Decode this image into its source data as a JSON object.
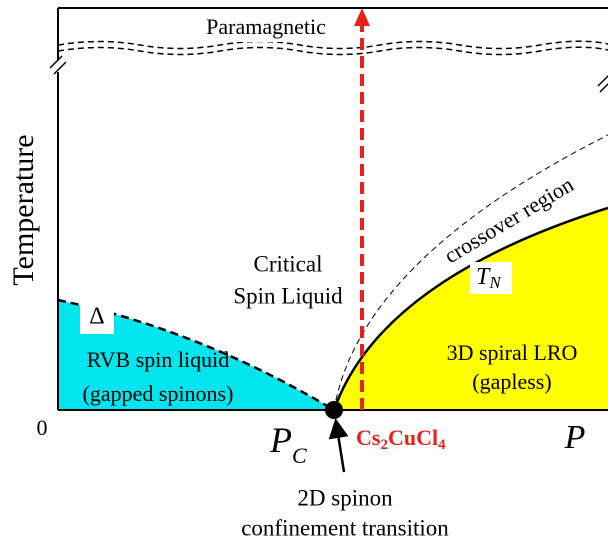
{
  "diagram": {
    "top_region": "Paramagnetic",
    "y_axis_label": "Temperature",
    "origin_label": "0",
    "critical": [
      "Critical",
      "Spin Liquid"
    ],
    "crossover": "crossover region",
    "tn": {
      "symbol": "T",
      "subscript": "N"
    },
    "gap": "Δ",
    "rvb": [
      "RVB spin liquid",
      "(gapped spinons)"
    ],
    "lro": [
      "3D spiral LRO",
      "(gapless)"
    ],
    "pc": {
      "symbol": "P",
      "subscript": "C"
    },
    "material": {
      "parts": [
        "Cs",
        "2",
        "Cu",
        "Cl",
        "4"
      ]
    },
    "x_axis_label": "P",
    "transition": [
      "2D spinon",
      "confinement transition"
    ]
  }
}
